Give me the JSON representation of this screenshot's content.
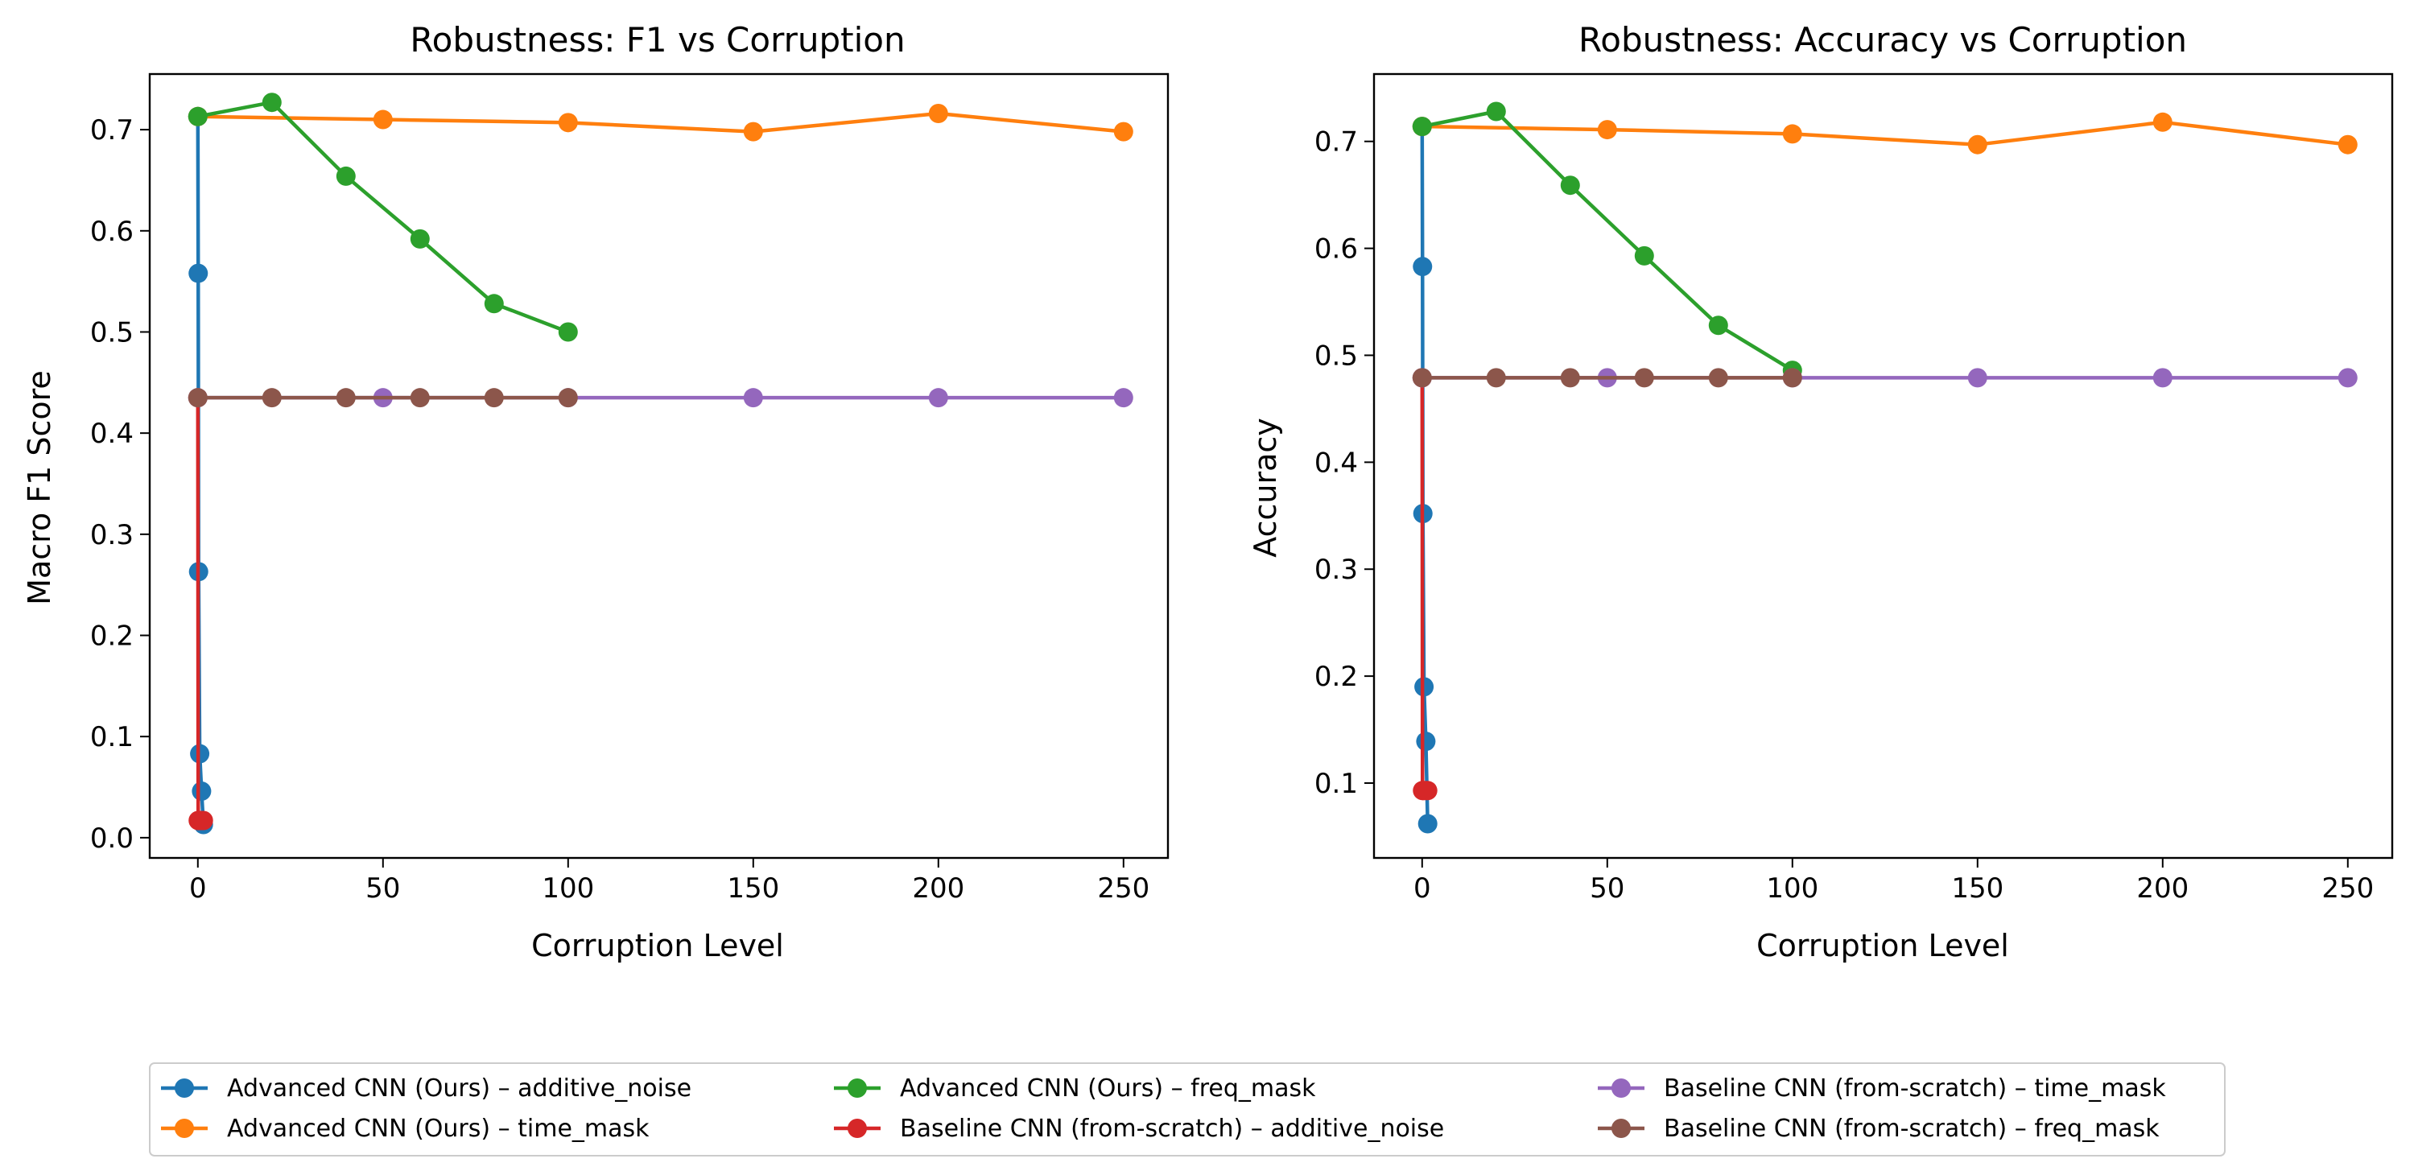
{
  "chart_data": [
    {
      "type": "line",
      "title": "Robustness: F1 vs Corruption",
      "xlabel": "Corruption Level",
      "ylabel": "Macro F1 Score",
      "xlim": [
        -13,
        262
      ],
      "ylim": [
        -0.02,
        0.755
      ],
      "xticks": [
        0,
        50,
        100,
        150,
        200,
        250
      ],
      "yticks": [
        0.0,
        0.1,
        0.2,
        0.3,
        0.4,
        0.5,
        0.6,
        0.7
      ],
      "grid": false,
      "series": [
        {
          "name": "Advanced CNN (Ours) – additive_noise",
          "color": "#1f77b4",
          "x": [
            0,
            0.1,
            0.2,
            0.5,
            1.0,
            1.5
          ],
          "y": [
            0.713,
            0.558,
            0.263,
            0.083,
            0.046,
            0.013
          ]
        },
        {
          "name": "Advanced CNN (Ours) – time_mask",
          "color": "#ff7f0e",
          "x": [
            0,
            50,
            100,
            150,
            200,
            250
          ],
          "y": [
            0.713,
            0.71,
            0.707,
            0.698,
            0.716,
            0.698
          ]
        },
        {
          "name": "Advanced CNN (Ours) – freq_mask",
          "color": "#2ca02c",
          "x": [
            0,
            20,
            40,
            60,
            80,
            100
          ],
          "y": [
            0.713,
            0.727,
            0.654,
            0.592,
            0.528,
            0.5
          ]
        },
        {
          "name": "Baseline CNN (from-scratch) – additive_noise",
          "color": "#d62728",
          "x": [
            0,
            0.1,
            0.2,
            0.5,
            1.0,
            1.5
          ],
          "y": [
            0.435,
            0.017,
            0.017,
            0.017,
            0.017,
            0.017
          ]
        },
        {
          "name": "Baseline CNN (from-scratch) – time_mask",
          "color": "#9467bd",
          "x": [
            0,
            50,
            100,
            150,
            200,
            250
          ],
          "y": [
            0.435,
            0.435,
            0.435,
            0.435,
            0.435,
            0.435
          ]
        },
        {
          "name": "Baseline CNN (from-scratch) – freq_mask",
          "color": "#8c564b",
          "x": [
            0,
            20,
            40,
            60,
            80,
            100
          ],
          "y": [
            0.435,
            0.435,
            0.435,
            0.435,
            0.435,
            0.435
          ]
        }
      ]
    },
    {
      "type": "line",
      "title": "Robustness: Accuracy vs Corruption",
      "xlabel": "Corruption Level",
      "ylabel": "Accuracy",
      "xlim": [
        -13,
        262
      ],
      "ylim": [
        0.03,
        0.763
      ],
      "xticks": [
        0,
        50,
        100,
        150,
        200,
        250
      ],
      "yticks": [
        0.1,
        0.2,
        0.3,
        0.4,
        0.5,
        0.6,
        0.7
      ],
      "grid": false,
      "series": [
        {
          "name": "Advanced CNN (Ours) – additive_noise",
          "color": "#1f77b4",
          "x": [
            0,
            0.1,
            0.2,
            0.5,
            1.0,
            1.5
          ],
          "y": [
            0.714,
            0.583,
            0.352,
            0.19,
            0.139,
            0.062
          ]
        },
        {
          "name": "Advanced CNN (Ours) – time_mask",
          "color": "#ff7f0e",
          "x": [
            0,
            50,
            100,
            150,
            200,
            250
          ],
          "y": [
            0.714,
            0.711,
            0.707,
            0.697,
            0.718,
            0.697
          ]
        },
        {
          "name": "Advanced CNN (Ours) – freq_mask",
          "color": "#2ca02c",
          "x": [
            0,
            20,
            40,
            60,
            80,
            100
          ],
          "y": [
            0.714,
            0.728,
            0.659,
            0.593,
            0.528,
            0.486
          ]
        },
        {
          "name": "Baseline CNN (from-scratch) – additive_noise",
          "color": "#d62728",
          "x": [
            0,
            0.1,
            0.2,
            0.5,
            1.0,
            1.5
          ],
          "y": [
            0.479,
            0.093,
            0.093,
            0.093,
            0.093,
            0.093
          ]
        },
        {
          "name": "Baseline CNN (from-scratch) – time_mask",
          "color": "#9467bd",
          "x": [
            0,
            50,
            100,
            150,
            200,
            250
          ],
          "y": [
            0.479,
            0.479,
            0.479,
            0.479,
            0.479,
            0.479
          ]
        },
        {
          "name": "Baseline CNN (from-scratch) – freq_mask",
          "color": "#8c564b",
          "x": [
            0,
            20,
            40,
            60,
            80,
            100
          ],
          "y": [
            0.479,
            0.479,
            0.479,
            0.479,
            0.479,
            0.479
          ]
        }
      ]
    }
  ],
  "legend": {
    "placement": "bottom-center",
    "columns": 3,
    "entries": [
      {
        "label": "Advanced CNN (Ours) – additive_noise",
        "color": "#1f77b4"
      },
      {
        "label": "Advanced CNN (Ours) – time_mask",
        "color": "#ff7f0e"
      },
      {
        "label": "Advanced CNN (Ours) – freq_mask",
        "color": "#2ca02c"
      },
      {
        "label": "Baseline CNN (from-scratch) – additive_noise",
        "color": "#d62728"
      },
      {
        "label": "Baseline CNN (from-scratch) – time_mask",
        "color": "#9467bd"
      },
      {
        "label": "Baseline CNN (from-scratch) – freq_mask",
        "color": "#8c564b"
      }
    ]
  }
}
